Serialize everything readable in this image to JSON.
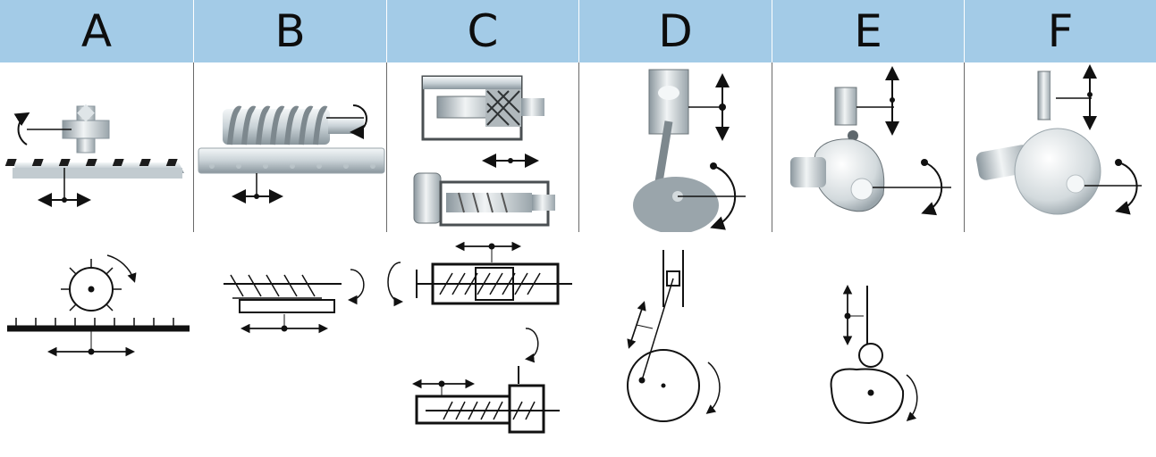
{
  "header": {
    "columns": [
      {
        "label": "A"
      },
      {
        "label": "B"
      },
      {
        "label": "C"
      },
      {
        "label": "D"
      },
      {
        "label": "E"
      },
      {
        "label": "F"
      }
    ]
  },
  "colors": {
    "header_fill": "#a3cbe7",
    "divider": "#6a6a6a",
    "line": "#111111",
    "metal_light": "#e6ecef",
    "metal_dark": "#8a969d"
  },
  "mechanisms": [
    {
      "column": "A",
      "icons": [
        "rack-and-pinion-photo-icon",
        "rack-and-pinion-schematic-icon"
      ]
    },
    {
      "column": "B",
      "icons": [
        "worm-rack-photo-icon",
        "worm-rack-schematic-icon"
      ]
    },
    {
      "column": "C",
      "icons": [
        "lead-screw-nut-photo-icon",
        "lead-screw-schematic-icon"
      ]
    },
    {
      "column": "D",
      "icons": [
        "slider-crank-photo-icon",
        "slider-crank-schematic-icon"
      ]
    },
    {
      "column": "E",
      "icons": [
        "cam-follower-photo-icon",
        "cam-follower-schematic-icon"
      ]
    },
    {
      "column": "F",
      "icons": [
        "eccentric-disc-photo-icon"
      ]
    }
  ]
}
